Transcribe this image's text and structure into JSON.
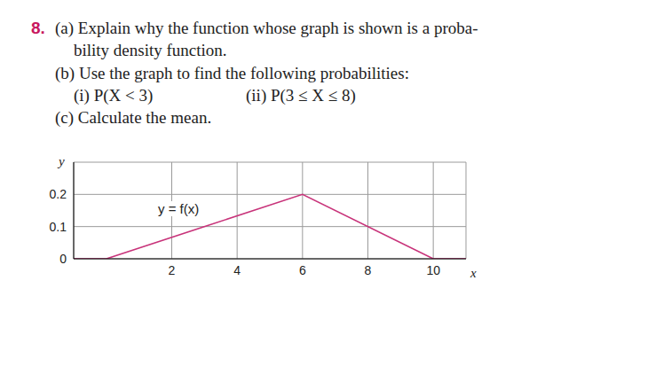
{
  "problem": {
    "number": "8.",
    "lines": [
      "(a) Explain why the function whose graph is shown is a proba-",
      "bility density function.",
      "(b) Use the graph to find the following probabilities:",
      "(i) P(X < 3)",
      "(ii) P(3 ≤ X ≤ 8)",
      "(c) Calculate the mean."
    ]
  },
  "chart_data": {
    "type": "line",
    "x": [
      -1,
      0,
      6,
      10,
      11
    ],
    "values": [
      0,
      0,
      0.2,
      0,
      0
    ],
    "color": "#c8337a",
    "xlim": [
      -1,
      11
    ],
    "ylim": [
      0,
      0.3
    ],
    "xticks": [
      2,
      4,
      6,
      8,
      10
    ],
    "yticks": [
      0,
      0.1,
      0.2
    ],
    "grid": true,
    "xlabel": "x",
    "ylabel": "y",
    "annotations": [
      "y = f(x)"
    ]
  }
}
